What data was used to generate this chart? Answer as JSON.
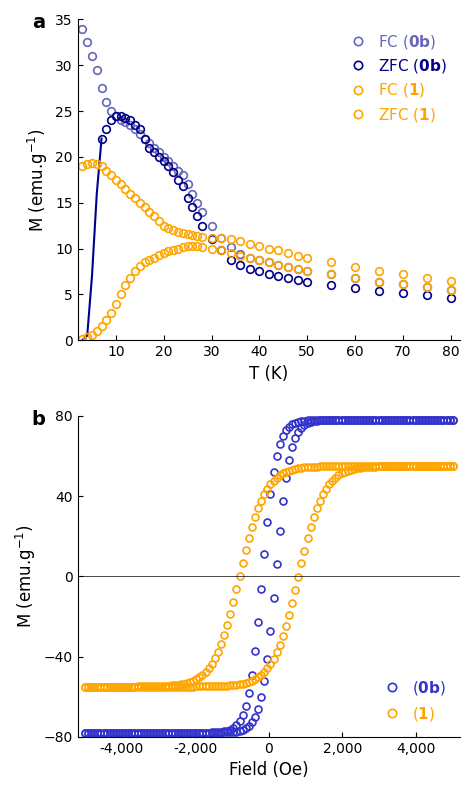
{
  "panel_a": {
    "title_label": "a",
    "xlabel": "T (K)",
    "ylabel": "M (emu.g⁻¹)",
    "xlim": [
      2,
      80
    ],
    "ylim": [
      0,
      35
    ],
    "xticks": [
      10,
      20,
      30,
      40,
      50,
      60,
      70,
      80
    ],
    "yticks": [
      0,
      5,
      10,
      15,
      20,
      25,
      30,
      35
    ],
    "fc_0b_color": "#4040cc",
    "zfc_0b_color": "#00008B",
    "fc_1_color": "#FFA500",
    "zfc_1_color": "#FFA500",
    "legend_entries": [
      "FC (±0b)",
      "ZFC (±0b)",
      "FC (1)",
      "ZFC (1)"
    ]
  },
  "panel_b": {
    "title_label": "b",
    "xlabel": "Field (Oe)",
    "ylabel": "M (emu.g⁻¹)",
    "xlim": [
      -5000,
      5000
    ],
    "ylim": [
      -80,
      80
    ],
    "xticks": [
      -4000,
      -2000,
      0,
      2000,
      4000
    ],
    "yticks": [
      -80,
      -40,
      0,
      40,
      80
    ],
    "color_0b": "#3333cc",
    "color_1": "#FFA500",
    "legend_entries": [
      "(0b)",
      "(1)"
    ]
  },
  "blue_light": "#6666cc",
  "blue_dark": "#00008B",
  "orange": "#FFA500"
}
